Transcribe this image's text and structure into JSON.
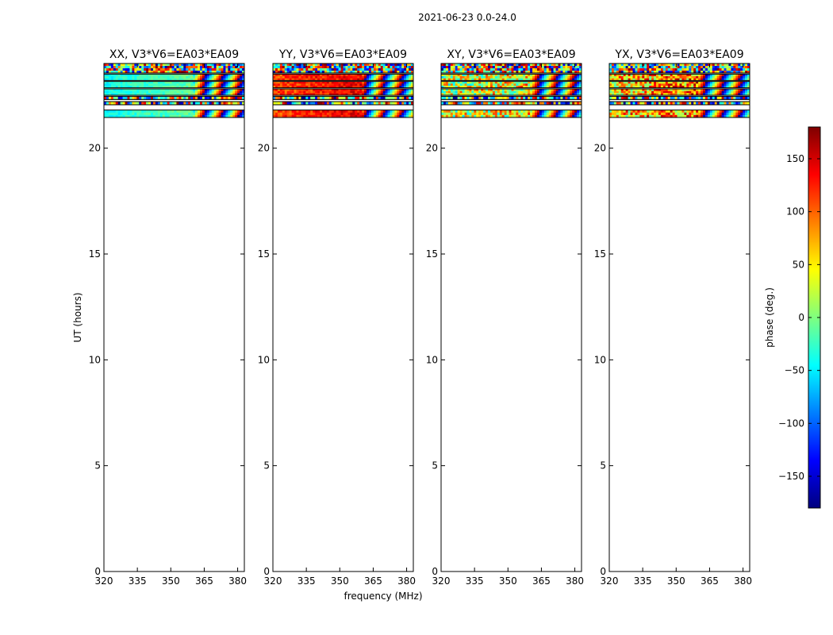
{
  "figure_title": "2021-06-23 0.0-24.0",
  "xlabel": "frequency (MHz)",
  "ylabel": "UT (hours)",
  "colorbar": {
    "label": "phase (deg.)",
    "ticks": [
      150,
      100,
      50,
      0,
      -50,
      -100,
      -150
    ],
    "tick_labels": [
      "150",
      "100",
      "50",
      "0",
      "−50",
      "−100",
      "−150"
    ],
    "range": [
      -180,
      180
    ],
    "colormap": [
      "#00007f",
      "#0000ff",
      "#007fff",
      "#00ffff",
      "#7fff7f",
      "#ffff00",
      "#ff7f00",
      "#ff0000",
      "#7f0000"
    ]
  },
  "chart_data": {
    "type": "heatmap",
    "xlim": [
      320,
      383
    ],
    "ylim": [
      0,
      24
    ],
    "x_ticks": [
      320,
      335,
      350,
      365,
      380
    ],
    "x_tick_labels": [
      "320",
      "335",
      "350",
      "365",
      "380"
    ],
    "y_ticks": [
      0,
      5,
      10,
      15,
      20
    ],
    "y_tick_labels": [
      "0",
      "5",
      "10",
      "15",
      "20"
    ],
    "data_time_range": [
      21.4,
      24.0
    ],
    "data_rows": [
      {
        "t0": 23.55,
        "t1": 24.0,
        "mode": "noisy"
      },
      {
        "t0": 23.2,
        "t1": 23.5,
        "mode": "smooth"
      },
      {
        "t0": 22.85,
        "t1": 23.15,
        "mode": "smooth"
      },
      {
        "t0": 22.5,
        "t1": 22.8,
        "mode": "smooth"
      },
      {
        "t0": 22.3,
        "t1": 22.45,
        "mode": "noisy"
      },
      {
        "t0": 22.05,
        "t1": 22.2,
        "mode": "noisy"
      },
      {
        "t0": 21.45,
        "t1": 21.8,
        "mode": "smooth"
      }
    ],
    "panels": [
      {
        "title": "XX, V3*V6=EA03*EA09",
        "base_phase": -40,
        "noise": 35
      },
      {
        "title": "YY, V3*V6=EA03*EA09",
        "base_phase": 110,
        "noise": 55
      },
      {
        "title": "XY, V3*V6=EA03*EA09",
        "base_phase": 20,
        "noise": 170
      },
      {
        "title": "YX, V3*V6=EA03*EA09",
        "base_phase": 60,
        "noise": 170
      }
    ]
  }
}
